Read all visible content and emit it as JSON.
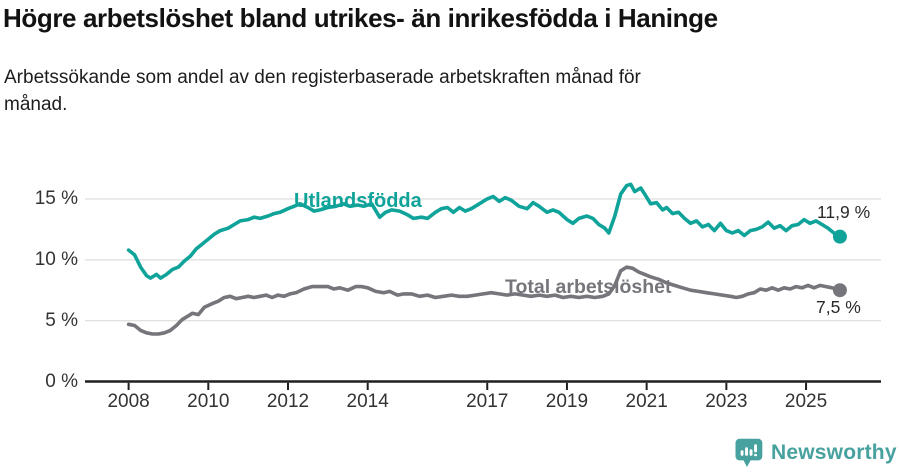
{
  "header": {
    "title": "Högre arbetslöshet bland utrikes- än inrikesfödda i Haninge",
    "subtitle_lines": [
      "Arbetssökande som andel av den registerbaserade arbetskraften månad för",
      "månad."
    ]
  },
  "footer": {
    "brand": "Newsworthy",
    "brand_color": "#47a19e",
    "logo_icon": "bar-chart-speech-bubble-icon"
  },
  "colors": {
    "accent_teal": "#10a39a",
    "line_gray": "#75757b",
    "text": "#121212",
    "axis": "#1f1f1f",
    "grid": "#e1e1e1",
    "tick_label": "#333333"
  },
  "chart_data": {
    "type": "line",
    "title": "Högre arbetslöshet bland utrikes- än inrikesfödda i Haninge",
    "subtitle": "Arbetssökande som andel av den registerbaserade arbetskraften månad för månad.",
    "xlabel": "",
    "ylabel": "",
    "unit": "%",
    "grid": "horizontal",
    "legend": "inline-labels",
    "x_axis": {
      "ticks": [
        2008,
        2010,
        2012,
        2014,
        2017,
        2019,
        2021,
        2023,
        2025
      ],
      "range": [
        2007.0,
        2026.9
      ]
    },
    "y_axis": {
      "tick_values": [
        0,
        5,
        10,
        15
      ],
      "tick_labels": [
        "0 %",
        "5 %",
        "10 %",
        "15 %"
      ],
      "range": [
        0,
        16.5
      ]
    },
    "series": [
      {
        "name": "Utlandsfödda",
        "color": "#10a39a",
        "end_label": "11,9 %",
        "last_value": 11.9,
        "x": [
          2008.0,
          2008.15,
          2008.3,
          2008.45,
          2008.55,
          2008.7,
          2008.8,
          2008.95,
          2009.1,
          2009.25,
          2009.4,
          2009.55,
          2009.7,
          2009.85,
          2010.0,
          2010.15,
          2010.3,
          2010.5,
          2010.65,
          2010.8,
          2011.0,
          2011.15,
          2011.3,
          2011.5,
          2011.65,
          2011.8,
          2012.0,
          2012.15,
          2012.3,
          2012.5,
          2012.65,
          2012.8,
          2013.0,
          2013.2,
          2013.4,
          2013.55,
          2013.75,
          2013.9,
          2014.1,
          2014.3,
          2014.45,
          2014.6,
          2014.8,
          2015.0,
          2015.15,
          2015.35,
          2015.5,
          2015.7,
          2015.85,
          2016.0,
          2016.15,
          2016.3,
          2016.45,
          2016.6,
          2016.8,
          2017.0,
          2017.15,
          2017.3,
          2017.45,
          2017.6,
          2017.8,
          2018.0,
          2018.15,
          2018.3,
          2018.5,
          2018.65,
          2018.8,
          2019.0,
          2019.15,
          2019.3,
          2019.5,
          2019.65,
          2019.8,
          2019.95,
          2020.05,
          2020.2,
          2020.35,
          2020.5,
          2020.6,
          2020.7,
          2020.85,
          2020.95,
          2021.1,
          2021.25,
          2021.4,
          2021.5,
          2021.65,
          2021.8,
          2021.95,
          2022.1,
          2022.25,
          2022.4,
          2022.55,
          2022.7,
          2022.85,
          2023.0,
          2023.15,
          2023.3,
          2023.45,
          2023.6,
          2023.75,
          2023.9,
          2024.05,
          2024.2,
          2024.35,
          2024.5,
          2024.65,
          2024.8,
          2024.95,
          2025.1,
          2025.25,
          2025.4,
          2025.55,
          2025.7,
          2025.85
        ],
        "values": [
          10.8,
          10.4,
          9.4,
          8.7,
          8.5,
          8.8,
          8.5,
          8.8,
          9.2,
          9.4,
          9.9,
          10.3,
          10.9,
          11.3,
          11.7,
          12.1,
          12.4,
          12.6,
          12.9,
          13.2,
          13.3,
          13.5,
          13.4,
          13.6,
          13.8,
          13.9,
          14.2,
          14.4,
          14.6,
          14.3,
          14.0,
          14.1,
          14.3,
          14.4,
          14.6,
          14.4,
          14.5,
          14.4,
          14.6,
          13.5,
          13.9,
          14.1,
          14.0,
          13.7,
          13.4,
          13.5,
          13.4,
          13.9,
          14.2,
          14.3,
          13.9,
          14.3,
          14.0,
          14.2,
          14.6,
          15.0,
          15.2,
          14.8,
          15.1,
          14.9,
          14.4,
          14.2,
          14.7,
          14.4,
          13.9,
          14.1,
          13.9,
          13.3,
          13.0,
          13.4,
          13.6,
          13.4,
          12.9,
          12.6,
          12.2,
          13.6,
          15.4,
          16.1,
          16.2,
          15.6,
          15.9,
          15.4,
          14.6,
          14.7,
          14.1,
          14.3,
          13.8,
          13.9,
          13.4,
          13.0,
          13.2,
          12.7,
          12.9,
          12.4,
          13.0,
          12.4,
          12.2,
          12.4,
          12.0,
          12.4,
          12.5,
          12.7,
          13.1,
          12.6,
          12.8,
          12.4,
          12.8,
          12.9,
          13.3,
          13.0,
          13.2,
          12.9,
          12.6,
          12.2,
          11.9
        ]
      },
      {
        "name": "Total arbetslöshet",
        "color": "#75757b",
        "end_label": "7,5 %",
        "last_value": 7.5,
        "x": [
          2008.0,
          2008.15,
          2008.3,
          2008.45,
          2008.6,
          2008.75,
          2008.9,
          2009.05,
          2009.2,
          2009.35,
          2009.5,
          2009.6,
          2009.75,
          2009.9,
          2010.1,
          2010.25,
          2010.4,
          2010.55,
          2010.7,
          2010.85,
          2011.0,
          2011.15,
          2011.3,
          2011.45,
          2011.6,
          2011.75,
          2011.9,
          2012.05,
          2012.2,
          2012.4,
          2012.6,
          2012.8,
          2013.0,
          2013.15,
          2013.3,
          2013.5,
          2013.7,
          2013.85,
          2014.0,
          2014.2,
          2014.4,
          2014.55,
          2014.75,
          2014.9,
          2015.1,
          2015.3,
          2015.5,
          2015.7,
          2015.9,
          2016.1,
          2016.3,
          2016.5,
          2016.7,
          2016.9,
          2017.1,
          2017.3,
          2017.5,
          2017.7,
          2017.9,
          2018.1,
          2018.3,
          2018.5,
          2018.7,
          2018.9,
          2019.1,
          2019.3,
          2019.5,
          2019.7,
          2019.9,
          2020.05,
          2020.2,
          2020.35,
          2020.5,
          2020.65,
          2020.8,
          2020.95,
          2021.1,
          2021.3,
          2021.5,
          2021.7,
          2021.9,
          2022.1,
          2022.3,
          2022.5,
          2022.7,
          2022.9,
          2023.1,
          2023.25,
          2023.4,
          2023.55,
          2023.7,
          2023.85,
          2024.0,
          2024.15,
          2024.3,
          2024.45,
          2024.6,
          2024.75,
          2024.9,
          2025.05,
          2025.2,
          2025.35,
          2025.5,
          2025.65,
          2025.85
        ],
        "values": [
          4.7,
          4.6,
          4.2,
          4.0,
          3.9,
          3.9,
          4.0,
          4.2,
          4.6,
          5.1,
          5.4,
          5.6,
          5.5,
          6.1,
          6.4,
          6.6,
          6.9,
          7.0,
          6.8,
          6.9,
          7.0,
          6.9,
          7.0,
          7.1,
          6.9,
          7.1,
          7.0,
          7.2,
          7.3,
          7.6,
          7.8,
          7.8,
          7.8,
          7.6,
          7.7,
          7.5,
          7.8,
          7.8,
          7.7,
          7.4,
          7.3,
          7.4,
          7.1,
          7.2,
          7.2,
          7.0,
          7.1,
          6.9,
          7.0,
          7.1,
          7.0,
          7.0,
          7.1,
          7.2,
          7.3,
          7.2,
          7.1,
          7.2,
          7.1,
          7.0,
          7.1,
          7.0,
          7.1,
          6.9,
          7.0,
          6.9,
          7.0,
          6.9,
          7.0,
          7.2,
          7.9,
          9.1,
          9.4,
          9.3,
          9.0,
          8.8,
          8.6,
          8.4,
          8.1,
          7.9,
          7.7,
          7.5,
          7.4,
          7.3,
          7.2,
          7.1,
          7.0,
          6.9,
          7.0,
          7.2,
          7.3,
          7.6,
          7.5,
          7.7,
          7.5,
          7.7,
          7.6,
          7.8,
          7.7,
          7.9,
          7.7,
          7.9,
          7.8,
          7.7,
          7.5
        ]
      }
    ]
  }
}
